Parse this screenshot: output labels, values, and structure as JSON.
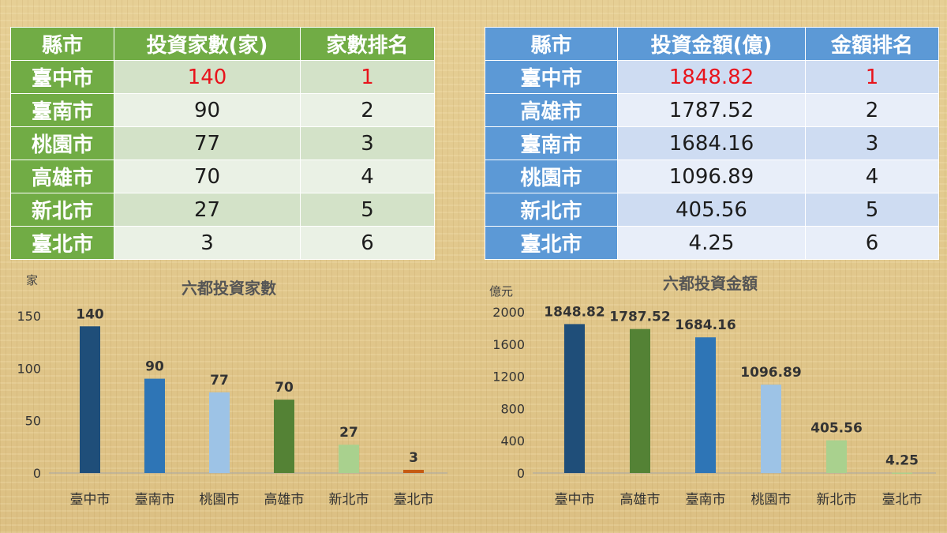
{
  "count_table": {
    "headers": [
      "縣市",
      "投資家數(家)",
      "家數排名"
    ],
    "rows": [
      {
        "city": "臺中市",
        "value": "140",
        "rank": "1"
      },
      {
        "city": "臺南市",
        "value": "90",
        "rank": "2"
      },
      {
        "city": "桃園市",
        "value": "77",
        "rank": "3"
      },
      {
        "city": "高雄市",
        "value": "70",
        "rank": "4"
      },
      {
        "city": "新北市",
        "value": "27",
        "rank": "5"
      },
      {
        "city": "臺北市",
        "value": "3",
        "rank": "6"
      }
    ],
    "header_color": "#71ac45",
    "highlight_color": "#e8141c"
  },
  "amount_table": {
    "headers": [
      "縣市",
      "投資金額(億)",
      "金額排名"
    ],
    "rows": [
      {
        "city": "臺中市",
        "value": "1848.82",
        "rank": "1"
      },
      {
        "city": "高雄市",
        "value": "1787.52",
        "rank": "2"
      },
      {
        "city": "臺南市",
        "value": "1684.16",
        "rank": "3"
      },
      {
        "city": "桃園市",
        "value": "1096.89",
        "rank": "4"
      },
      {
        "city": "新北市",
        "value": "405.56",
        "rank": "5"
      },
      {
        "city": "臺北市",
        "value": "4.25",
        "rank": "6"
      }
    ],
    "header_color": "#5c99d6",
    "highlight_color": "#e8141c"
  },
  "chart_data": [
    {
      "type": "bar",
      "title": "六都投資家數",
      "unit": "家",
      "categories": [
        "臺中市",
        "臺南市",
        "桃園市",
        "高雄市",
        "新北市",
        "臺北市"
      ],
      "values": [
        140,
        90,
        77,
        70,
        27,
        3
      ],
      "data_labels": [
        "140",
        "90",
        "77",
        "70",
        "27",
        "3"
      ],
      "colors": [
        "#1f4e79",
        "#2e75b6",
        "#9dc3e6",
        "#548235",
        "#a9d18e",
        "#c55a11"
      ],
      "ylim": [
        0,
        150
      ],
      "yticks": [
        0,
        50,
        100,
        150
      ],
      "grid": false
    },
    {
      "type": "bar",
      "title": "六都投資金額",
      "unit": "億元",
      "categories": [
        "臺中市",
        "高雄市",
        "臺南市",
        "桃園市",
        "新北市",
        "臺北市"
      ],
      "values": [
        1848.82,
        1787.52,
        1684.16,
        1096.89,
        405.56,
        4.25
      ],
      "data_labels": [
        "1848.82",
        "1787.52",
        "1684.16",
        "1096.89",
        "405.56",
        "4.25"
      ],
      "colors": [
        "#1f4e79",
        "#548235",
        "#2e75b6",
        "#9dc3e6",
        "#a9d18e",
        "#a9d18e"
      ],
      "ylim": [
        0,
        2000
      ],
      "yticks": [
        0,
        400,
        800,
        1200,
        1600,
        2000
      ],
      "grid": false
    }
  ]
}
